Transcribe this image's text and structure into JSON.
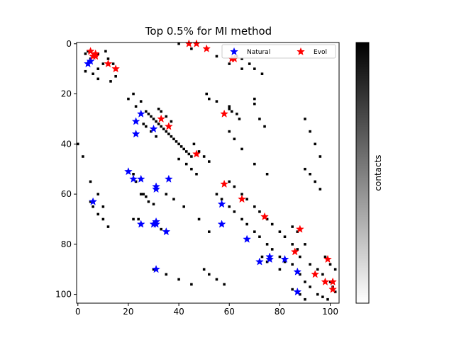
{
  "chart_data": {
    "type": "heatmap",
    "title": "Top 0.5% for MI method",
    "xlabel": "",
    "ylabel": "",
    "matrix_size": 104,
    "xlim": [
      -0.5,
      103.5
    ],
    "ylim": [
      103.5,
      -0.5
    ],
    "x_ticks": [
      0,
      20,
      40,
      60,
      80,
      100
    ],
    "y_ticks": [
      0,
      20,
      40,
      60,
      80,
      100
    ],
    "grid": false,
    "legend_position": "top-right",
    "colormap": "gray_r",
    "colorbar": {
      "label": "contacts",
      "range": [
        0,
        1
      ]
    },
    "contact_cells": [
      [
        3,
        4
      ],
      [
        4,
        3
      ],
      [
        5,
        3
      ],
      [
        8,
        4
      ],
      [
        4,
        8
      ],
      [
        6,
        5
      ],
      [
        5,
        6
      ],
      [
        11,
        3
      ],
      [
        3,
        11
      ],
      [
        10,
        8
      ],
      [
        8,
        10
      ],
      [
        12,
        6
      ],
      [
        6,
        12
      ],
      [
        14,
        8
      ],
      [
        8,
        14
      ],
      [
        13,
        15
      ],
      [
        15,
        13
      ],
      [
        20,
        22
      ],
      [
        22,
        20
      ],
      [
        23,
        25
      ],
      [
        25,
        23
      ],
      [
        27,
        27
      ],
      [
        28,
        28
      ],
      [
        29,
        29
      ],
      [
        30,
        30
      ],
      [
        31,
        31
      ],
      [
        32,
        32
      ],
      [
        33,
        33
      ],
      [
        34,
        34
      ],
      [
        35,
        35
      ],
      [
        36,
        36
      ],
      [
        37,
        37
      ],
      [
        38,
        38
      ],
      [
        39,
        39
      ],
      [
        40,
        40
      ],
      [
        41,
        41
      ],
      [
        42,
        42
      ],
      [
        43,
        43
      ],
      [
        44,
        44
      ],
      [
        45,
        45
      ],
      [
        26,
        32
      ],
      [
        32,
        26
      ],
      [
        27,
        33
      ],
      [
        33,
        27
      ],
      [
        29,
        35
      ],
      [
        35,
        29
      ],
      [
        31,
        37
      ],
      [
        37,
        31
      ],
      [
        40,
        46
      ],
      [
        46,
        40
      ],
      [
        43,
        48
      ],
      [
        48,
        43
      ],
      [
        45,
        50
      ],
      [
        50,
        45
      ],
      [
        47,
        52
      ],
      [
        52,
        47
      ],
      [
        25,
        60
      ],
      [
        60,
        25
      ],
      [
        26,
        60
      ],
      [
        60,
        26
      ],
      [
        27,
        61
      ],
      [
        61,
        27
      ],
      [
        28,
        63
      ],
      [
        63,
        28
      ],
      [
        30,
        64
      ],
      [
        64,
        30
      ],
      [
        22,
        70
      ],
      [
        70,
        22
      ],
      [
        24,
        70
      ],
      [
        70,
        24
      ],
      [
        30,
        72
      ],
      [
        72,
        30
      ],
      [
        33,
        74
      ],
      [
        74,
        33
      ],
      [
        55,
        60
      ],
      [
        60,
        55
      ],
      [
        57,
        62
      ],
      [
        62,
        57
      ],
      [
        60,
        65
      ],
      [
        65,
        60
      ],
      [
        62,
        67
      ],
      [
        67,
        62
      ],
      [
        65,
        70
      ],
      [
        70,
        65
      ],
      [
        67,
        72
      ],
      [
        72,
        67
      ],
      [
        70,
        75
      ],
      [
        75,
        70
      ],
      [
        72,
        77
      ],
      [
        77,
        72
      ],
      [
        75,
        80
      ],
      [
        80,
        75
      ],
      [
        77,
        82
      ],
      [
        82,
        77
      ],
      [
        80,
        85
      ],
      [
        85,
        80
      ],
      [
        82,
        87
      ],
      [
        87,
        82
      ],
      [
        85,
        88
      ],
      [
        88,
        85
      ],
      [
        88,
        92
      ],
      [
        92,
        88
      ],
      [
        90,
        95
      ],
      [
        95,
        90
      ],
      [
        92,
        97
      ],
      [
        97,
        92
      ],
      [
        95,
        100
      ],
      [
        100,
        95
      ],
      [
        97,
        101
      ],
      [
        101,
        97
      ],
      [
        99,
        102
      ],
      [
        102,
        99
      ],
      [
        50,
        90
      ],
      [
        90,
        50
      ],
      [
        52,
        92
      ],
      [
        92,
        52
      ],
      [
        55,
        94
      ],
      [
        94,
        55
      ],
      [
        58,
        96
      ],
      [
        96,
        58
      ],
      [
        20,
        51
      ],
      [
        51,
        20
      ],
      [
        22,
        52
      ],
      [
        52,
        22
      ],
      [
        23,
        55
      ],
      [
        55,
        23
      ],
      [
        5,
        63
      ],
      [
        63,
        5
      ],
      [
        6,
        65
      ],
      [
        65,
        6
      ],
      [
        8,
        68
      ],
      [
        68,
        8
      ],
      [
        10,
        70
      ],
      [
        70,
        10
      ],
      [
        12,
        73
      ],
      [
        73,
        12
      ],
      [
        90,
        30
      ],
      [
        30,
        90
      ],
      [
        92,
        35
      ],
      [
        35,
        92
      ],
      [
        94,
        40
      ],
      [
        40,
        94
      ],
      [
        96,
        45
      ],
      [
        45,
        96
      ],
      [
        85,
        73
      ],
      [
        73,
        85
      ],
      [
        87,
        75
      ],
      [
        75,
        87
      ],
      [
        90,
        80
      ],
      [
        80,
        90
      ],
      [
        98,
        85
      ],
      [
        85,
        98
      ],
      [
        100,
        88
      ],
      [
        88,
        100
      ],
      [
        102,
        90
      ],
      [
        90,
        102
      ],
      [
        40,
        0
      ],
      [
        0,
        40
      ],
      [
        45,
        2
      ],
      [
        2,
        45
      ],
      [
        55,
        5
      ],
      [
        5,
        55
      ],
      [
        60,
        8
      ],
      [
        8,
        60
      ],
      [
        65,
        10
      ],
      [
        10,
        65
      ],
      [
        35,
        60
      ],
      [
        60,
        35
      ],
      [
        38,
        62
      ],
      [
        62,
        38
      ],
      [
        42,
        65
      ],
      [
        65,
        42
      ],
      [
        48,
        70
      ],
      [
        70,
        48
      ],
      [
        52,
        75
      ],
      [
        75,
        52
      ]
    ],
    "series": [
      {
        "name": "Natural",
        "color": "#0000ff",
        "marker": "star",
        "points": [
          [
            4,
            8
          ],
          [
            5,
            7
          ],
          [
            25,
            28
          ],
          [
            23,
            31
          ],
          [
            30,
            34
          ],
          [
            23,
            36
          ],
          [
            20,
            51
          ],
          [
            22,
            54
          ],
          [
            25,
            54
          ],
          [
            36,
            54
          ],
          [
            31,
            57
          ],
          [
            31,
            58
          ],
          [
            6,
            63
          ],
          [
            25,
            72
          ],
          [
            30,
            72
          ],
          [
            31,
            72
          ],
          [
            31,
            71
          ],
          [
            35,
            75
          ],
          [
            57,
            64
          ],
          [
            57,
            72
          ],
          [
            67,
            78
          ],
          [
            72,
            87
          ],
          [
            76,
            86
          ],
          [
            76,
            85
          ],
          [
            82,
            86
          ],
          [
            87,
            91
          ],
          [
            31,
            90
          ],
          [
            87,
            99
          ]
        ]
      },
      {
        "name": "Evol",
        "color": "#ff0000",
        "marker": "star",
        "points": [
          [
            5,
            3
          ],
          [
            6,
            5
          ],
          [
            7,
            5
          ],
          [
            7,
            4
          ],
          [
            12,
            8
          ],
          [
            15,
            10
          ],
          [
            44,
            0
          ],
          [
            47,
            0
          ],
          [
            51,
            2
          ],
          [
            61,
            6
          ],
          [
            62,
            6
          ],
          [
            58,
            28
          ],
          [
            33,
            30
          ],
          [
            36,
            33
          ],
          [
            47,
            44
          ],
          [
            58,
            56
          ],
          [
            65,
            62
          ],
          [
            74,
            69
          ],
          [
            88,
            74
          ],
          [
            86,
            83
          ],
          [
            99,
            86
          ],
          [
            94,
            92
          ],
          [
            98,
            95
          ],
          [
            101,
            95
          ],
          [
            101,
            98
          ]
        ]
      }
    ]
  }
}
